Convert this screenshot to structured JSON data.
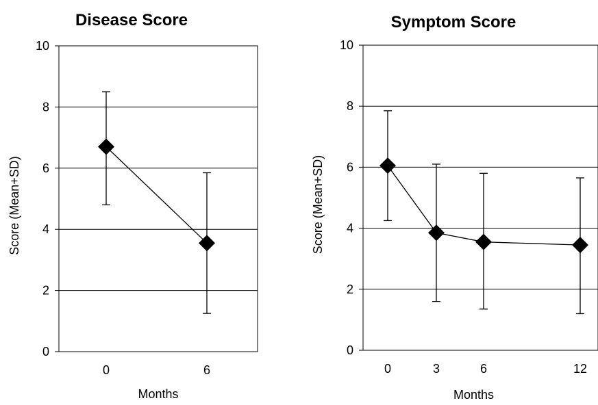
{
  "chart_data": [
    {
      "type": "line",
      "title": "Disease Score",
      "xlabel": "Months",
      "ylabel": "Score (Mean+SD)",
      "ylim": [
        0,
        10
      ],
      "yticks": [
        0,
        2,
        4,
        6,
        8,
        10
      ],
      "grid": true,
      "x": [
        0,
        6
      ],
      "series": [
        {
          "values": [
            6.7,
            3.55
          ],
          "error_low": [
            4.8,
            1.25
          ],
          "error_high": [
            8.5,
            5.85
          ]
        }
      ]
    },
    {
      "type": "line",
      "title": "Symptom Score",
      "xlabel": "Months",
      "ylabel": "Score (Mean+SD)",
      "ylim": [
        0,
        10
      ],
      "yticks": [
        0,
        2,
        4,
        6,
        8,
        10
      ],
      "grid": true,
      "x": [
        0,
        3,
        6,
        12
      ],
      "series": [
        {
          "values": [
            6.05,
            3.85,
            3.55,
            3.45
          ],
          "error_low": [
            4.25,
            1.6,
            1.35,
            1.2
          ],
          "error_high": [
            7.85,
            6.1,
            5.8,
            5.65
          ]
        }
      ]
    }
  ]
}
